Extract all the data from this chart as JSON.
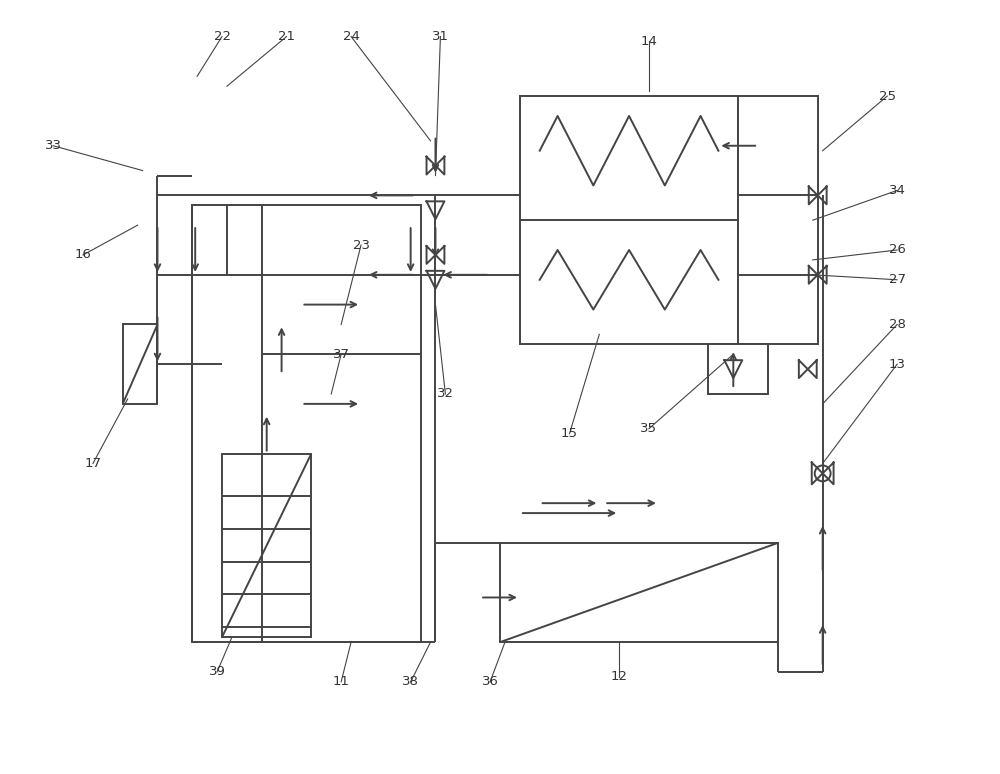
{
  "bg_color": "#ffffff",
  "line_color": "#444444",
  "line_width": 1.4,
  "fig_w": 10.0,
  "fig_h": 7.74,
  "dpi": 100
}
